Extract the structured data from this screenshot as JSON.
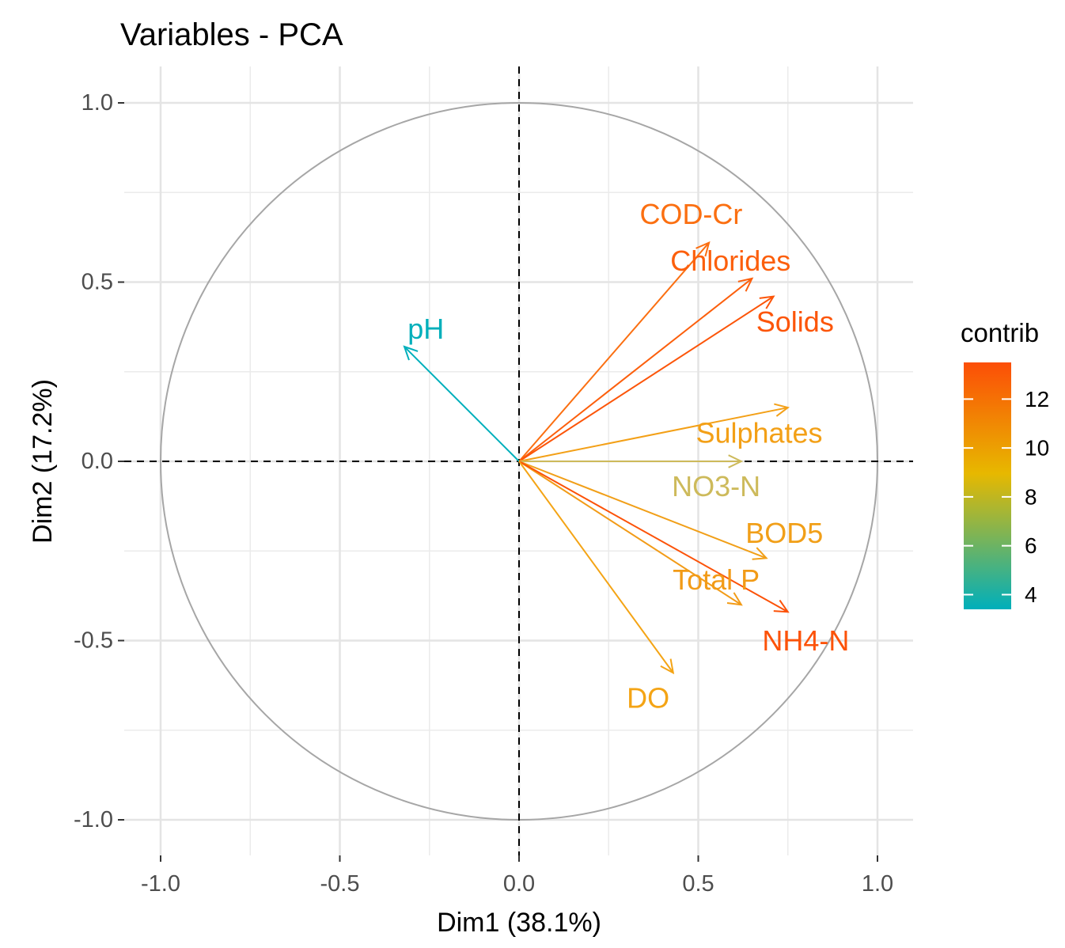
{
  "chart_data": {
    "type": "scatter",
    "subtype": "pca-variable-correlation-circle",
    "title": "Variables - PCA",
    "xlabel": "Dim1 (38.1%)",
    "ylabel": "Dim2 (17.2%)",
    "xlim": [
      -1.1,
      1.1
    ],
    "ylim": [
      -1.1,
      1.1
    ],
    "xticks": [
      {
        "value": -1.0,
        "label": "-1.0"
      },
      {
        "value": -0.5,
        "label": "-0.5"
      },
      {
        "value": 0.0,
        "label": "0.0"
      },
      {
        "value": 0.5,
        "label": "0.5"
      },
      {
        "value": 1.0,
        "label": "1.0"
      }
    ],
    "yticks": [
      {
        "value": 1.0,
        "label": "1.0"
      },
      {
        "value": 0.5,
        "label": "0.5"
      },
      {
        "value": 0.0,
        "label": "0.0"
      },
      {
        "value": -0.5,
        "label": "-0.5"
      },
      {
        "value": -1.0,
        "label": "-1.0"
      }
    ],
    "grid": true,
    "unit_circle": true,
    "legend": {
      "title": "contrib",
      "placement": "right",
      "range": [
        3.4,
        13.5
      ],
      "ticks": [
        {
          "value": 4,
          "label": "4"
        },
        {
          "value": 6,
          "label": "6"
        },
        {
          "value": 8,
          "label": "8"
        },
        {
          "value": 10,
          "label": "10"
        },
        {
          "value": 12,
          "label": "12"
        }
      ],
      "gradient_colors": [
        "#00AFBB",
        "#E7B800",
        "#FC4E07"
      ]
    },
    "variables": [
      {
        "name": "COD-Cr",
        "x": 0.53,
        "y": 0.61,
        "contrib": 11.3,
        "color": "#fb6f11",
        "label_x": 0.48,
        "label_y": 0.69
      },
      {
        "name": "Chlorides",
        "x": 0.65,
        "y": 0.51,
        "contrib": 12.4,
        "color": "#fc5f0c",
        "label_x": 0.59,
        "label_y": 0.56
      },
      {
        "name": "Solids",
        "x": 0.71,
        "y": 0.46,
        "contrib": 13.0,
        "color": "#fc5509",
        "label_x": 0.77,
        "label_y": 0.39
      },
      {
        "name": "pH",
        "x": -0.32,
        "y": 0.32,
        "contrib": 3.4,
        "color": "#00afbb",
        "label_x": -0.26,
        "label_y": 0.37
      },
      {
        "name": "Sulphates",
        "x": 0.75,
        "y": 0.15,
        "contrib": 10.0,
        "color": "#f3a017",
        "label_x": 0.67,
        "label_y": 0.08
      },
      {
        "name": "NO3-N",
        "x": 0.62,
        "y": 0.0,
        "contrib": 7.4,
        "color": "#cdba5b",
        "label_x": 0.55,
        "label_y": -0.07
      },
      {
        "name": "BOD5",
        "x": 0.69,
        "y": -0.27,
        "contrib": 10.1,
        "color": "#f19f18",
        "label_x": 0.74,
        "label_y": -0.2
      },
      {
        "name": "Total P",
        "x": 0.62,
        "y": -0.4,
        "contrib": 10.3,
        "color": "#f29b17",
        "label_x": 0.55,
        "label_y": -0.33
      },
      {
        "name": "NH4-N",
        "x": 0.75,
        "y": -0.42,
        "contrib": 13.2,
        "color": "#fc5208",
        "label_x": 0.8,
        "label_y": -0.5
      },
      {
        "name": "DO",
        "x": 0.43,
        "y": -0.59,
        "contrib": 9.6,
        "color": "#f4a415",
        "label_x": 0.36,
        "label_y": -0.66
      }
    ]
  }
}
